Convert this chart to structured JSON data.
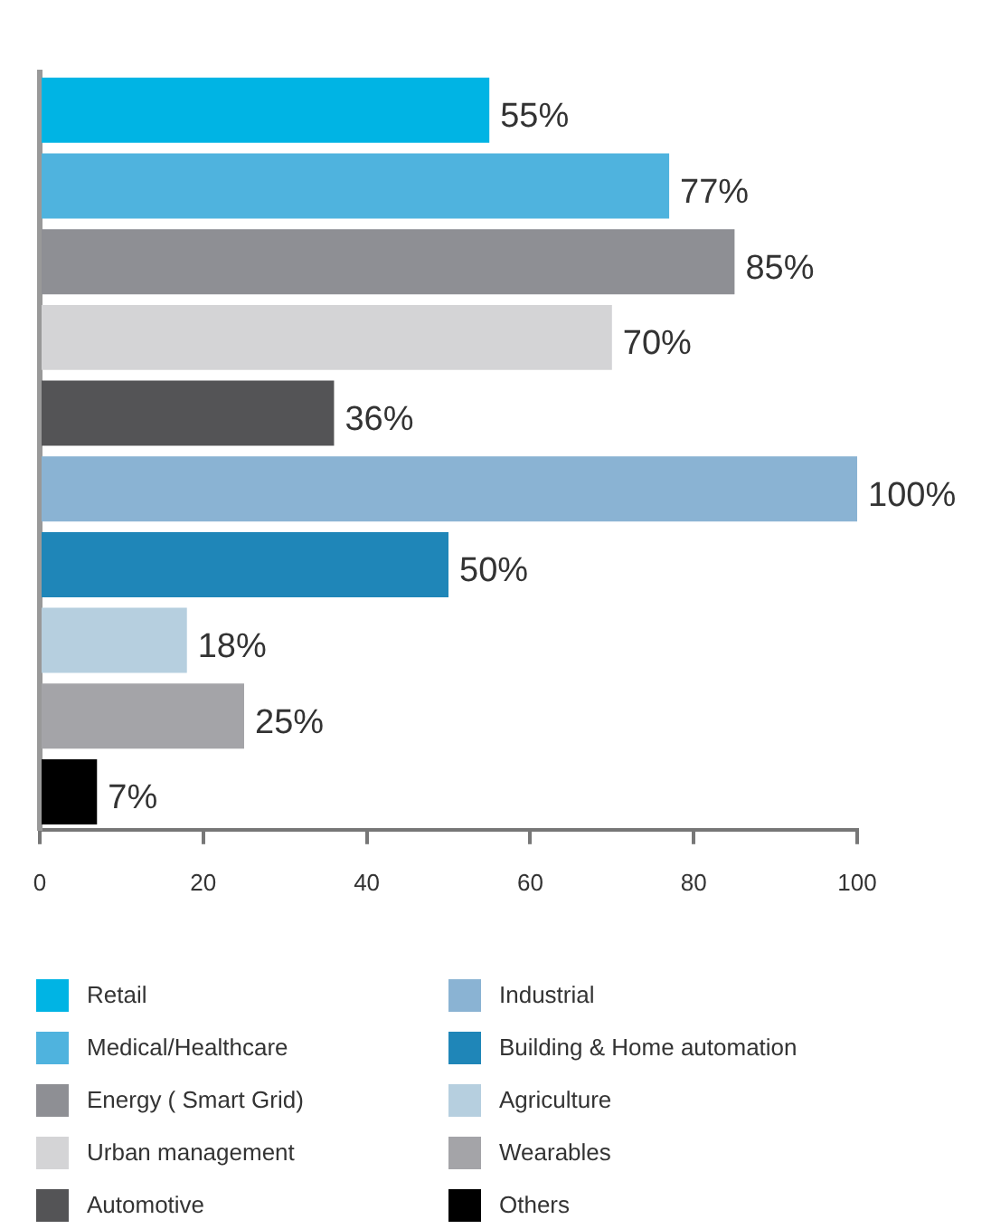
{
  "chart_data": {
    "type": "bar",
    "orientation": "horizontal",
    "stacked": true,
    "legend": "bottom",
    "categories": [
      null,
      null,
      null,
      null,
      null,
      null,
      null,
      null,
      null,
      null
    ],
    "xlim": [
      0,
      100
    ],
    "xticks": [
      0,
      20,
      40,
      60,
      80,
      100
    ],
    "series": [
      {
        "name": "Retail",
        "color": "#00b4e4",
        "values": [
          55,
          null,
          null,
          null,
          null,
          null,
          null,
          null,
          null,
          null
        ],
        "value_labels": [
          "55%",
          null,
          null,
          null,
          null,
          null,
          null,
          null,
          null,
          null
        ]
      },
      {
        "name": "Medical/Healthcare",
        "color": "#4fb3de",
        "values": [
          null,
          77,
          null,
          null,
          null,
          null,
          null,
          null,
          null,
          null
        ],
        "value_labels": [
          null,
          "77%",
          null,
          null,
          null,
          null,
          null,
          null,
          null,
          null
        ]
      },
      {
        "name": "Energy ( Smart Grid)",
        "color": "#8e8f94",
        "values": [
          null,
          null,
          85,
          null,
          null,
          null,
          null,
          null,
          null,
          null
        ],
        "value_labels": [
          null,
          null,
          "85%",
          null,
          null,
          null,
          null,
          null,
          null,
          null
        ]
      },
      {
        "name": "Urban management",
        "color": "#d4d4d6",
        "values": [
          null,
          null,
          null,
          70,
          null,
          null,
          null,
          null,
          null,
          null
        ],
        "value_labels": [
          null,
          null,
          null,
          "70%",
          null,
          null,
          null,
          null,
          null,
          null
        ]
      },
      {
        "name": "Automotive",
        "color": "#545456",
        "values": [
          null,
          null,
          null,
          null,
          36,
          null,
          null,
          null,
          null,
          null
        ],
        "value_labels": [
          null,
          null,
          null,
          null,
          "36%",
          null,
          null,
          null,
          null,
          null
        ]
      },
      {
        "name": "Industrial",
        "color": "#8ab3d3",
        "values": [
          null,
          null,
          null,
          null,
          null,
          100,
          null,
          null,
          null,
          null
        ],
        "value_labels": [
          null,
          null,
          null,
          null,
          null,
          "100%",
          null,
          null,
          null,
          null
        ]
      },
      {
        "name": "Building & Home automation",
        "color": "#1f86b8",
        "values": [
          null,
          null,
          null,
          null,
          null,
          null,
          50,
          null,
          null,
          null
        ],
        "value_labels": [
          null,
          null,
          null,
          null,
          null,
          null,
          "50%",
          null,
          null,
          null
        ]
      },
      {
        "name": "Agriculture",
        "color": "#b6cfdf",
        "values": [
          null,
          null,
          null,
          null,
          null,
          null,
          null,
          18,
          null,
          null
        ],
        "value_labels": [
          null,
          null,
          null,
          null,
          null,
          null,
          null,
          "18%",
          null,
          null
        ]
      },
      {
        "name": "Wearables",
        "color": "#a4a4a8",
        "values": [
          null,
          null,
          null,
          null,
          null,
          null,
          null,
          null,
          25,
          null
        ],
        "value_labels": [
          null,
          null,
          null,
          null,
          null,
          null,
          null,
          null,
          "25%",
          null
        ]
      },
      {
        "name": "Others",
        "color": "#000000",
        "values": [
          null,
          null,
          null,
          null,
          null,
          null,
          null,
          null,
          null,
          7
        ],
        "value_labels": [
          null,
          null,
          null,
          null,
          null,
          null,
          null,
          null,
          null,
          "7%"
        ]
      }
    ]
  }
}
